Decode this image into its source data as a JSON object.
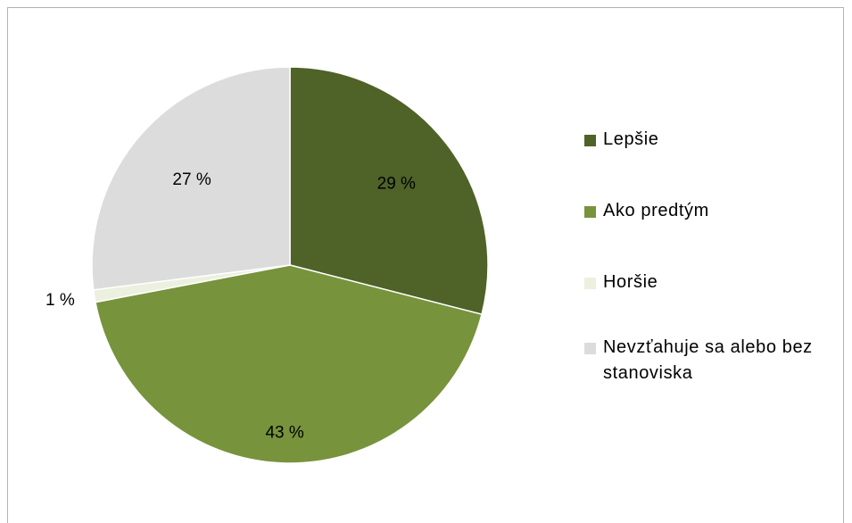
{
  "chart_data": {
    "type": "pie",
    "categories": [
      "Lepšie",
      "Ako predtým",
      "Horšie",
      "Nevzťahuje sa alebo bez stanoviska"
    ],
    "values": [
      29,
      43,
      1,
      27
    ],
    "labels": [
      "29 %",
      "43 %",
      "1 %",
      "27 %"
    ],
    "colors": [
      "#4f6228",
      "#77933c",
      "#ebf1de",
      "#dcdcdc"
    ],
    "legend_position": "right"
  },
  "legend": {
    "items": [
      {
        "label": "Lepšie",
        "color": "#4f6228"
      },
      {
        "label": "Ako predtým",
        "color": "#77933c"
      },
      {
        "label": "Horšie",
        "color": "#ebf1de"
      },
      {
        "label": "Nevzťahuje sa alebo bez stanoviska",
        "color": "#dcdcdc"
      }
    ]
  }
}
